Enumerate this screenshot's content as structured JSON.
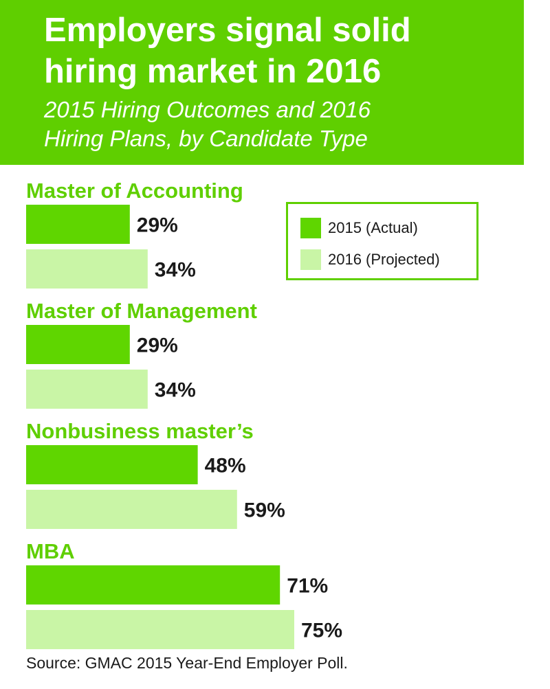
{
  "header": {
    "title_lines": [
      "Employers signal solid",
      "hiring market in 2016"
    ],
    "subtitle_lines": [
      "2015 Hiring Outcomes and 2016",
      "Hiring Plans, by Candidate Type"
    ]
  },
  "chart_data": {
    "type": "bar",
    "orientation": "horizontal",
    "title": "Employers signal solid hiring market in 2016",
    "subtitle": "2015 Hiring Outcomes and 2016 Hiring Plans, by Candidate Type",
    "categories": [
      "Master of Accounting",
      "Master of Management",
      "Nonbusiness master’s",
      "MBA"
    ],
    "series": [
      {
        "name": "2015 (Actual)",
        "values": [
          29,
          29,
          48,
          71
        ],
        "labels": [
          "29%",
          "29%",
          "48%",
          "71%"
        ],
        "color": "#5fd600"
      },
      {
        "name": "2016 (Projected)",
        "values": [
          34,
          34,
          59,
          75
        ],
        "labels": [
          "34%",
          "34%",
          "59%",
          "75%"
        ],
        "color": "#c9f5a6"
      }
    ],
    "xlim": [
      0,
      100
    ],
    "xlabel": "",
    "ylabel": "",
    "grid": false,
    "legend_position": "top-right"
  },
  "legend": {
    "items": [
      {
        "label": "2015 (Actual)",
        "color": "#5fd600"
      },
      {
        "label": "2016 (Projected)",
        "color": "#c9f5a6"
      }
    ]
  },
  "source": "Source: GMAC 2015 Year-End Employer Poll.",
  "colors": {
    "header_bg": "#5fcf00",
    "category_text": "#5fcf00",
    "value_text": "#1a1a1a"
  }
}
